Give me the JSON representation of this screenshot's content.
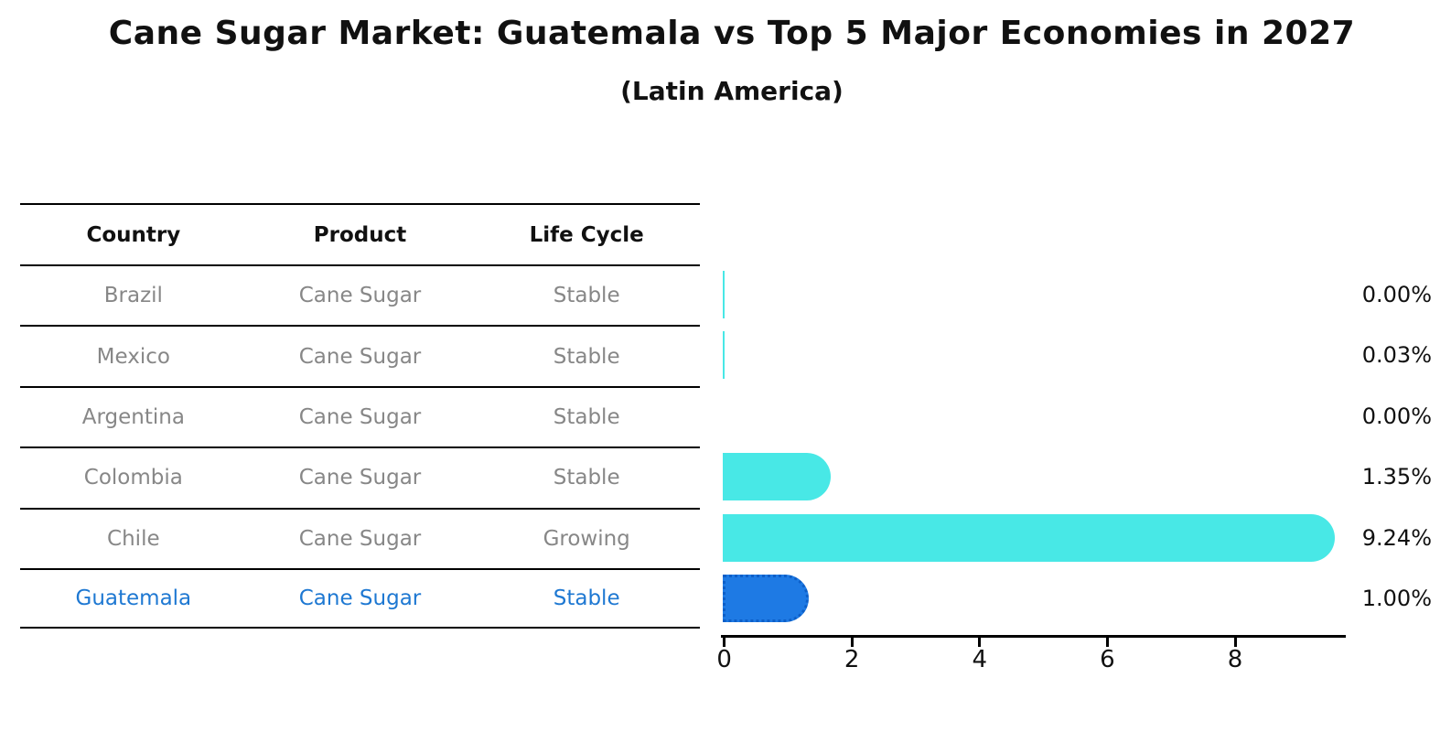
{
  "title": "Cane Sugar Market: Guatemala vs Top 5 Major Economies in 2027",
  "subtitle": "(Latin America)",
  "table": {
    "headers": [
      "Country",
      "Product",
      "Life Cycle"
    ]
  },
  "colors": {
    "bar": "#48e8e6",
    "highlight_bar": "#1e7ae4",
    "highlight_bar_border": "#0d5fc8",
    "highlight_text": "#1e78d2",
    "table_text": "#878787",
    "axis": "#000000"
  },
  "chart_data": {
    "type": "bar",
    "orientation": "horizontal",
    "title": "Cane Sugar Market: Guatemala vs Top 5 Major Economies in 2027",
    "subtitle": "(Latin America)",
    "xlabel": "",
    "ylabel": "",
    "xlim": [
      0,
      9.7
    ],
    "x_ticks": [
      0,
      2,
      4,
      6,
      8
    ],
    "grid": false,
    "legend": false,
    "rows": [
      {
        "country": "Brazil",
        "product": "Cane Sugar",
        "life_cycle": "Stable",
        "value": 0.0,
        "display": "0.00%",
        "sliver": true,
        "highlight": false
      },
      {
        "country": "Mexico",
        "product": "Cane Sugar",
        "life_cycle": "Stable",
        "value": 0.03,
        "display": "0.03%",
        "sliver": true,
        "highlight": false
      },
      {
        "country": "Argentina",
        "product": "Cane Sugar",
        "life_cycle": "Stable",
        "value": 0.0,
        "display": "0.00%",
        "sliver": false,
        "highlight": false
      },
      {
        "country": "Colombia",
        "product": "Cane Sugar",
        "life_cycle": "Stable",
        "value": 1.35,
        "display": "1.35%",
        "sliver": false,
        "highlight": false
      },
      {
        "country": "Chile",
        "product": "Cane Sugar",
        "life_cycle": "Growing",
        "value": 9.24,
        "display": "9.24%",
        "sliver": false,
        "highlight": false
      },
      {
        "country": "Guatemala",
        "product": "Cane Sugar",
        "life_cycle": "Stable",
        "value": 1.0,
        "display": "1.00%",
        "sliver": false,
        "highlight": true
      }
    ]
  }
}
